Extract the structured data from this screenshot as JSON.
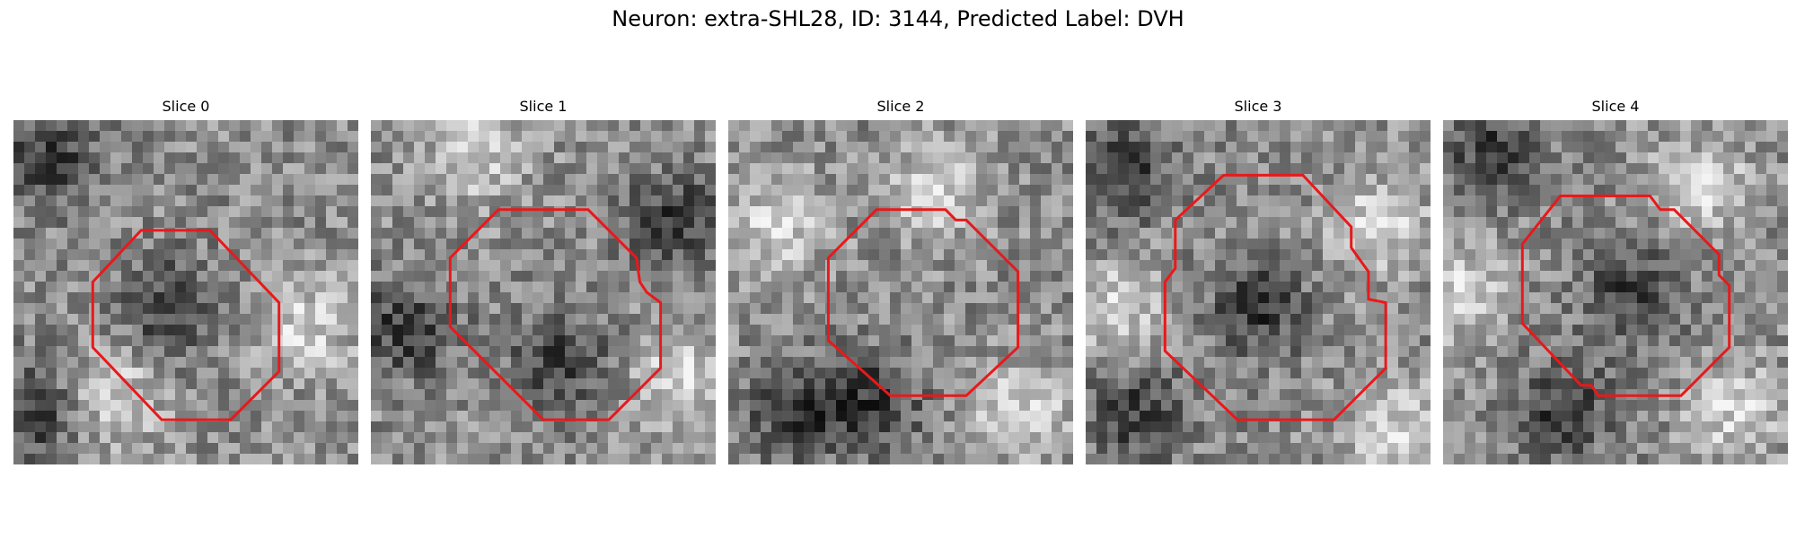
{
  "figure": {
    "title": "Neuron: extra-SHL28, ID: 3144, Predicted Label: DVH"
  },
  "panels": [
    {
      "label": "Slice 0",
      "dark_regions": [
        [
          0.1,
          0.1
        ],
        [
          0.45,
          0.55
        ],
        [
          0.05,
          0.85
        ]
      ],
      "bright_regions": [
        [
          0.85,
          0.6
        ],
        [
          0.3,
          0.8
        ]
      ],
      "contour": [
        [
          0.37,
          0.32
        ],
        [
          0.57,
          0.32
        ],
        [
          0.77,
          0.53
        ],
        [
          0.77,
          0.73
        ],
        [
          0.63,
          0.87
        ],
        [
          0.43,
          0.87
        ],
        [
          0.23,
          0.66
        ],
        [
          0.23,
          0.47
        ]
      ]
    },
    {
      "label": "Slice 1",
      "dark_regions": [
        [
          0.88,
          0.3
        ],
        [
          0.55,
          0.7
        ],
        [
          0.1,
          0.6
        ]
      ],
      "bright_regions": [
        [
          0.3,
          0.1
        ],
        [
          0.9,
          0.75
        ]
      ],
      "contour": [
        [
          0.37,
          0.26
        ],
        [
          0.63,
          0.26
        ],
        [
          0.77,
          0.4
        ],
        [
          0.78,
          0.47
        ],
        [
          0.8,
          0.5
        ],
        [
          0.84,
          0.53
        ],
        [
          0.84,
          0.72
        ],
        [
          0.69,
          0.87
        ],
        [
          0.5,
          0.87
        ],
        [
          0.23,
          0.6
        ],
        [
          0.23,
          0.4
        ]
      ]
    },
    {
      "label": "Slice 2",
      "dark_regions": [
        [
          0.2,
          0.84
        ],
        [
          0.42,
          0.82
        ]
      ],
      "bright_regions": [
        [
          0.15,
          0.3
        ],
        [
          0.85,
          0.85
        ],
        [
          0.6,
          0.2
        ]
      ],
      "contour": [
        [
          0.43,
          0.26
        ],
        [
          0.63,
          0.26
        ],
        [
          0.66,
          0.29
        ],
        [
          0.69,
          0.29
        ],
        [
          0.84,
          0.44
        ],
        [
          0.84,
          0.66
        ],
        [
          0.69,
          0.8
        ],
        [
          0.47,
          0.8
        ],
        [
          0.29,
          0.64
        ],
        [
          0.29,
          0.4
        ]
      ]
    },
    {
      "label": "Slice 3",
      "dark_regions": [
        [
          0.1,
          0.15
        ],
        [
          0.5,
          0.55
        ],
        [
          0.15,
          0.85
        ]
      ],
      "bright_regions": [
        [
          0.1,
          0.55
        ],
        [
          0.9,
          0.9
        ],
        [
          0.85,
          0.3
        ]
      ],
      "contour": [
        [
          0.4,
          0.16
        ],
        [
          0.63,
          0.16
        ],
        [
          0.77,
          0.31
        ],
        [
          0.77,
          0.37
        ],
        [
          0.82,
          0.44
        ],
        [
          0.82,
          0.52
        ],
        [
          0.87,
          0.53
        ],
        [
          0.87,
          0.72
        ],
        [
          0.72,
          0.87
        ],
        [
          0.44,
          0.87
        ],
        [
          0.23,
          0.67
        ],
        [
          0.23,
          0.47
        ],
        [
          0.26,
          0.43
        ],
        [
          0.26,
          0.29
        ]
      ]
    },
    {
      "label": "Slice 4",
      "dark_regions": [
        [
          0.35,
          0.85
        ],
        [
          0.55,
          0.5
        ],
        [
          0.15,
          0.1
        ]
      ],
      "bright_regions": [
        [
          0.05,
          0.5
        ],
        [
          0.85,
          0.85
        ],
        [
          0.75,
          0.2
        ]
      ],
      "contour": [
        [
          0.34,
          0.22
        ],
        [
          0.6,
          0.22
        ],
        [
          0.63,
          0.26
        ],
        [
          0.67,
          0.26
        ],
        [
          0.8,
          0.39
        ],
        [
          0.8,
          0.45
        ],
        [
          0.83,
          0.48
        ],
        [
          0.83,
          0.66
        ],
        [
          0.69,
          0.8
        ],
        [
          0.45,
          0.8
        ],
        [
          0.43,
          0.77
        ],
        [
          0.4,
          0.77
        ],
        [
          0.23,
          0.59
        ],
        [
          0.23,
          0.36
        ]
      ]
    }
  ],
  "colors": {
    "contour": "#e8191b"
  }
}
